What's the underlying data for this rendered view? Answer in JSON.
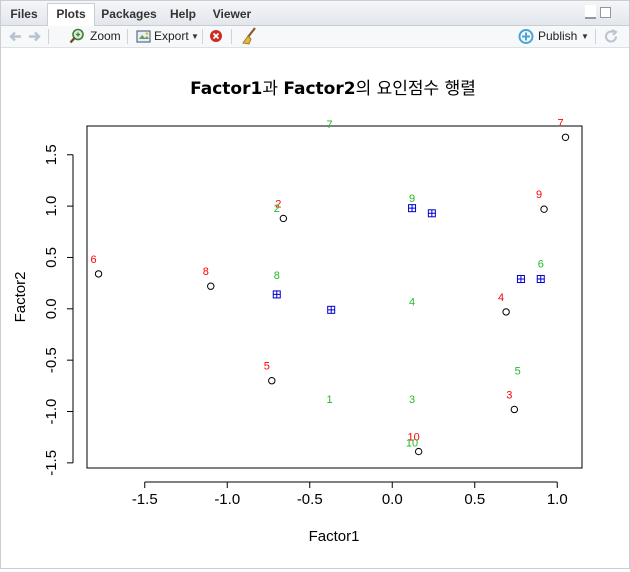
{
  "tabs": [
    {
      "label": "Files",
      "active": false
    },
    {
      "label": "Plots",
      "active": true
    },
    {
      "label": "Packages",
      "active": false
    },
    {
      "label": "Help",
      "active": false
    },
    {
      "label": "Viewer",
      "active": false
    }
  ],
  "toolbar": {
    "zoom_label": "Zoom",
    "export_label": "Export",
    "publish_label": "Publish"
  },
  "chart_data": {
    "type": "scatter",
    "title_parts": [
      "Factor1",
      "과 ",
      "Factor2",
      "의 요인점수 행렬"
    ],
    "xlabel": "Factor1",
    "ylabel": "Factor2",
    "xlim": [
      -1.85,
      1.15
    ],
    "ylim": [
      -1.55,
      1.78
    ],
    "xticks": [
      -1.5,
      -1.0,
      -0.5,
      0.0,
      0.5,
      1.0
    ],
    "xtick_labels": [
      "-1.5",
      "-1.0",
      "-0.5",
      "0.0",
      "0.5",
      "1.0"
    ],
    "yticks": [
      -1.5,
      -1.0,
      -0.5,
      0.0,
      0.5,
      1.0,
      1.5
    ],
    "ytick_labels": [
      "-1.5",
      "-1.0",
      "-0.5",
      "0.0",
      "0.5",
      "1.0",
      "1.5"
    ],
    "colors": {
      "points": "#000000",
      "red_labels": "#ff0000",
      "green_labels": "#22bb22",
      "centers": "#0000cc"
    },
    "series": [
      {
        "marker": "circle",
        "points": [
          {
            "x": 1.05,
            "y": 1.67,
            "label": "7"
          },
          {
            "x": 0.92,
            "y": 0.97,
            "label": "9"
          },
          {
            "x": -0.66,
            "y": 0.88,
            "label": "2"
          },
          {
            "x": -1.78,
            "y": 0.34,
            "label": "6"
          },
          {
            "x": -1.1,
            "y": 0.22,
            "label": "8"
          },
          {
            "x": 0.69,
            "y": -0.03,
            "label": "4"
          },
          {
            "x": -0.73,
            "y": -0.7,
            "label": "5"
          },
          {
            "x": 0.74,
            "y": -0.98,
            "label": "3"
          },
          {
            "x": 0.16,
            "y": -1.39,
            "label": "10"
          }
        ]
      },
      {
        "marker": "text",
        "points": [
          {
            "x": -0.38,
            "y": 1.8,
            "label": "7"
          },
          {
            "x": 0.12,
            "y": 1.08,
            "label": "9"
          },
          {
            "x": -0.7,
            "y": 0.98,
            "label": "2"
          },
          {
            "x": 0.9,
            "y": 0.44,
            "label": "6"
          },
          {
            "x": -0.7,
            "y": 0.33,
            "label": "8"
          },
          {
            "x": 0.12,
            "y": 0.07,
            "label": "4"
          },
          {
            "x": 0.76,
            "y": -0.6,
            "label": "5"
          },
          {
            "x": -0.38,
            "y": -0.88,
            "label": "1"
          },
          {
            "x": 0.12,
            "y": -0.88,
            "label": "3"
          },
          {
            "x": 0.12,
            "y": -1.3,
            "label": "10"
          }
        ]
      },
      {
        "marker": "boxplus",
        "points": [
          {
            "x": 0.12,
            "y": 0.98
          },
          {
            "x": 0.24,
            "y": 0.93
          },
          {
            "x": 0.78,
            "y": 0.29
          },
          {
            "x": 0.9,
            "y": 0.29
          },
          {
            "x": -0.7,
            "y": 0.14
          },
          {
            "x": -0.37,
            "y": -0.01
          }
        ]
      }
    ]
  }
}
